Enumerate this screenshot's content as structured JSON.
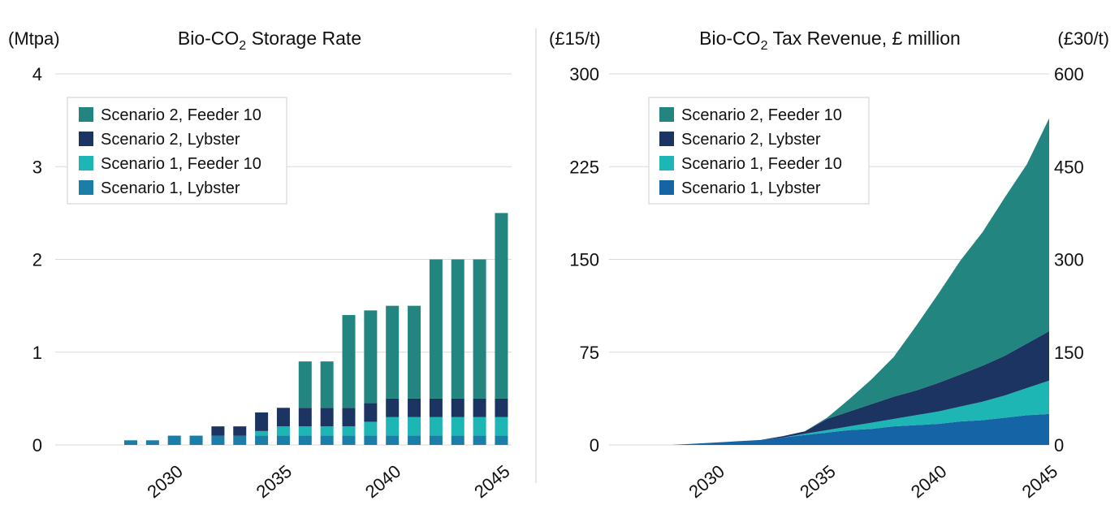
{
  "chart_data": [
    {
      "type": "bar",
      "stacked": true,
      "title_main": "Bio-CO",
      "title_sub": "2",
      "title_rest": " Storage Rate",
      "ylabel": "(Mtpa)",
      "ylim": [
        0,
        4
      ],
      "yticks": [
        "0",
        "1",
        "2",
        "3",
        "4"
      ],
      "xlabels": [
        "2030",
        "2035",
        "2040",
        "2045"
      ],
      "x": [
        2028,
        2029,
        2030,
        2031,
        2032,
        2033,
        2034,
        2035,
        2036,
        2037,
        2038,
        2039,
        2040,
        2041,
        2042,
        2043,
        2044,
        2045
      ],
      "grid": true,
      "legend_position": "top-left",
      "series": [
        {
          "name": "Scenario 1, Lybster",
          "color": "#1a7ea8",
          "values": [
            0.05,
            0.05,
            0.1,
            0.1,
            0.1,
            0.1,
            0.1,
            0.1,
            0.1,
            0.1,
            0.1,
            0.1,
            0.1,
            0.1,
            0.1,
            0.1,
            0.1,
            0.1
          ]
        },
        {
          "name": "Scenario 1, Feeder 10",
          "color": "#1eb5b5",
          "values": [
            0,
            0,
            0,
            0,
            0,
            0,
            0.05,
            0.1,
            0.1,
            0.1,
            0.1,
            0.15,
            0.2,
            0.2,
            0.2,
            0.2,
            0.2,
            0.2
          ]
        },
        {
          "name": "Scenario 2, Lybster",
          "color": "#1b3461",
          "values": [
            0,
            0,
            0,
            0,
            0.1,
            0.1,
            0.2,
            0.2,
            0.2,
            0.2,
            0.2,
            0.2,
            0.2,
            0.2,
            0.2,
            0.2,
            0.2,
            0.2
          ]
        },
        {
          "name": "Scenario 2, Feeder 10",
          "color": "#22857f",
          "values": [
            0,
            0,
            0,
            0,
            0,
            0,
            0,
            0,
            0.5,
            0.5,
            1.0,
            1.0,
            1.0,
            1.0,
            1.5,
            1.5,
            1.5,
            2.0
          ]
        }
      ],
      "legend_order": [
        "Scenario 2, Feeder 10",
        "Scenario 2, Lybster",
        "Scenario 1, Feeder 10",
        "Scenario 1, Lybster"
      ]
    },
    {
      "type": "area",
      "stacked": true,
      "title_main": "Bio-CO",
      "title_sub": "2",
      "title_rest": " Tax Revenue, £ million",
      "ylabel_left": "(£15/t)",
      "ylabel_right": "(£30/t)",
      "ylim": [
        0,
        300
      ],
      "yticks_left": [
        "0",
        "75",
        "150",
        "225",
        "300"
      ],
      "yticks_right": [
        "0",
        "150",
        "300",
        "450",
        "600"
      ],
      "xlabels": [
        "2030",
        "2035",
        "2040",
        "2045"
      ],
      "x": [
        2028,
        2029,
        2030,
        2031,
        2032,
        2033,
        2034,
        2035,
        2036,
        2037,
        2038,
        2039,
        2040,
        2041,
        2042,
        2043,
        2044,
        2045
      ],
      "grid": true,
      "legend_position": "top-left",
      "series": [
        {
          "name": "Scenario 1, Lybster",
          "color": "#1565a6",
          "values": [
            0,
            1,
            2,
            3,
            4,
            6,
            8,
            10,
            12,
            13,
            15,
            16,
            17,
            19,
            20,
            22,
            24,
            25
          ]
        },
        {
          "name": "Scenario 1, Feeder 10",
          "color": "#1eb5b5",
          "values": [
            0,
            0,
            0,
            0,
            0,
            0,
            1,
            2,
            3,
            5,
            6,
            8,
            10,
            12,
            15,
            18,
            22,
            27
          ]
        },
        {
          "name": "Scenario 2, Lybster",
          "color": "#1b3461",
          "values": [
            0,
            0,
            0,
            0,
            0,
            1,
            2,
            9,
            12,
            15,
            18,
            20,
            23,
            26,
            29,
            32,
            36,
            40
          ]
        },
        {
          "name": "Scenario 2, Feeder 10",
          "color": "#22857f",
          "values": [
            0,
            0,
            0,
            0,
            0,
            0,
            0,
            1,
            10,
            20,
            32,
            52,
            72,
            92,
            108,
            128,
            145,
            172
          ]
        }
      ],
      "legend_order": [
        "Scenario 2, Feeder 10",
        "Scenario 2, Lybster",
        "Scenario 1, Feeder 10",
        "Scenario 1, Lybster"
      ]
    }
  ]
}
